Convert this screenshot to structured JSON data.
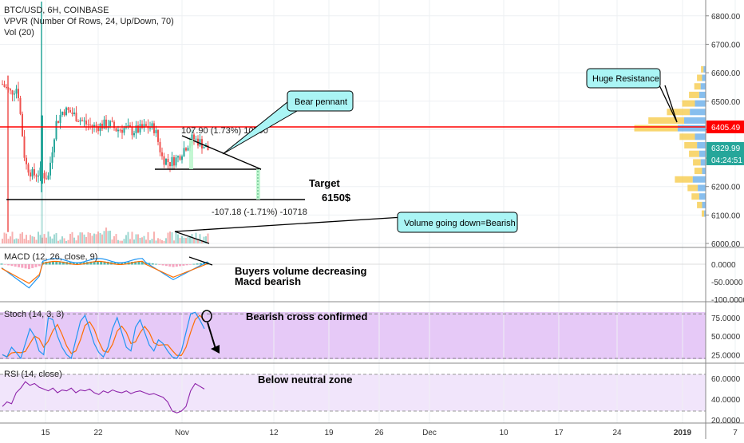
{
  "header": {
    "symbol": "BTC/USD, 6H, COINBASE",
    "indicator1": "VPVR (Number Of Rows, 24, Up/Down, 70)",
    "indicator2": "Vol (20)"
  },
  "colors": {
    "up": "#26a69a",
    "down": "#ef5350",
    "resistance": "#ff0000",
    "annotation_fill": "#aaf5f5",
    "stoch_fill": "#e6c9f7",
    "rsi_fill": "#f1e5fb",
    "k_line": "#2196f3",
    "d_line": "#ff6d00"
  },
  "chart_data": [
    {
      "panel": "price",
      "type": "candlestick",
      "ylim": [
        6000,
        6850
      ],
      "y_ticks": [
        "6800.00",
        "6700.00",
        "6600.00",
        "6500.00",
        "6400.00",
        "6300.00",
        "6200.00",
        "6100.00",
        "6000.00"
      ],
      "x_ticks": [
        "15",
        "22",
        "Nov",
        "12",
        "19",
        "26",
        "Dec",
        "10",
        "17",
        "24",
        "2019",
        "7"
      ],
      "price_labels": {
        "resistance": "6405.49",
        "last": "6329.99",
        "countdown": "04:24:51"
      },
      "close_path": [
        [
          "Oct 8",
          6560
        ],
        [
          "Oct 9",
          6530
        ],
        [
          "Oct 10",
          6550
        ],
        [
          "Oct 11",
          6280
        ],
        [
          "Oct 12",
          6240
        ],
        [
          "Oct 13",
          6250
        ],
        [
          "Oct 14",
          6230
        ],
        [
          "Oct 15",
          6420
        ],
        [
          "Oct 16",
          6470
        ],
        [
          "Oct 17",
          6460
        ],
        [
          "Oct 18",
          6440
        ],
        [
          "Oct 19",
          6420
        ],
        [
          "Oct 20",
          6410
        ],
        [
          "Oct 21",
          6415
        ],
        [
          "Oct 22",
          6420
        ],
        [
          "Oct 23",
          6400
        ],
        [
          "Oct 24",
          6405
        ],
        [
          "Oct 25",
          6395
        ],
        [
          "Oct 26",
          6400
        ],
        [
          "Oct 27",
          6410
        ],
        [
          "Oct 28",
          6405
        ],
        [
          "Oct 29",
          6300
        ],
        [
          "Oct 30",
          6285
        ],
        [
          "Oct 31",
          6300
        ],
        [
          "Nov 1",
          6340
        ],
        [
          "Nov 2",
          6370
        ],
        [
          "Nov 3",
          6355
        ],
        [
          "Nov 4",
          6330
        ]
      ],
      "horizontal_lines": [
        {
          "name": "resistance",
          "price": 6405.49
        },
        {
          "name": "support",
          "price": 6150
        }
      ],
      "measure_labels": [
        "107.90 (1.73%) 10790",
        "-107.18 (-1.71%) -10718"
      ],
      "annotations": {
        "bear_pennant": "Bear pennant",
        "target_title": "Target",
        "target_value": "6150$",
        "volume_note": "Volume going down=Bearish",
        "huge_resistance": "Huge Resistance"
      }
    },
    {
      "panel": "macd",
      "type": "line",
      "label": "MACD (12, 26, close, 9)",
      "y_ticks": [
        "0.0000",
        "-50.0000",
        "-100.0000"
      ],
      "note1": "Buyers volume decreasing",
      "note2": "Macd bearish"
    },
    {
      "panel": "stoch",
      "type": "line",
      "label": "Stoch (14, 3, 3)",
      "y_ticks": [
        "75.0000",
        "50.0000",
        "25.0000"
      ],
      "note": "Bearish cross confirmed"
    },
    {
      "panel": "rsi",
      "type": "line",
      "label": "RSI (14, close)",
      "y_ticks": [
        "60.0000",
        "40.0000",
        "20.0000"
      ],
      "note": "Below neutral zone"
    }
  ]
}
